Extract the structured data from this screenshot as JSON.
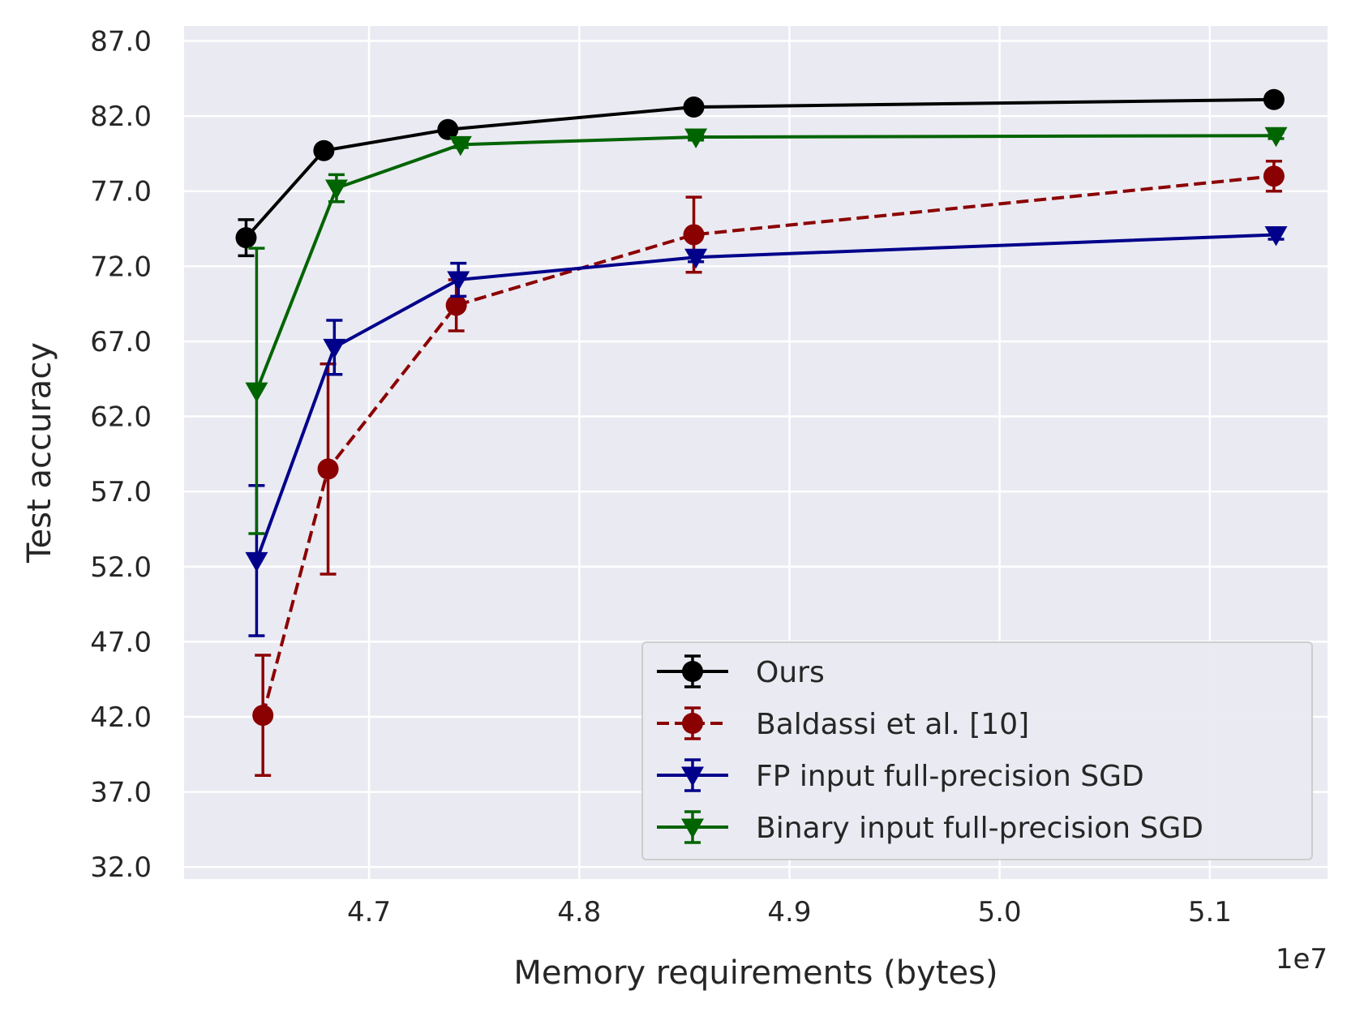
{
  "chart_data": {
    "type": "line",
    "xlabel": "Memory requirements (bytes)",
    "ylabel": "Test accuracy",
    "x_offset_label": "1e7",
    "xlim": [
      4.612,
      5.156
    ],
    "ylim": [
      31.2,
      88.0
    ],
    "xticks": [
      4.7,
      4.8,
      4.9,
      5.0,
      5.1
    ],
    "xtick_labels": [
      "4.7",
      "4.8",
      "4.9",
      "5.0",
      "5.1"
    ],
    "yticks": [
      32,
      37,
      42,
      47,
      52,
      57,
      62,
      67,
      72,
      77,
      82,
      87
    ],
    "ytick_labels": [
      "32.0",
      "37.0",
      "42.0",
      "47.0",
      "52.0",
      "57.0",
      "62.0",
      "67.0",
      "72.0",
      "77.0",
      "82.0",
      "87.0"
    ],
    "grid": true,
    "legend_position": "lower-right",
    "series": [
      {
        "name": "Ours",
        "color": "#000000",
        "marker": "circle",
        "dashed": false,
        "x": [
          4.6415,
          4.6785,
          4.7375,
          4.8545,
          5.1305
        ],
        "y": [
          73.9,
          79.7,
          81.1,
          82.6,
          83.1
        ],
        "err": [
          1.2,
          0.3,
          0.3,
          0.2,
          0.2
        ]
      },
      {
        "name": "Baldassi et al. [10]",
        "color": "#8b0000",
        "marker": "circle",
        "dashed": true,
        "x": [
          4.6495,
          4.6805,
          4.7415,
          4.8545,
          5.1305
        ],
        "y": [
          42.1,
          58.5,
          69.4,
          74.1,
          78.0
        ],
        "err": [
          4.0,
          7.0,
          1.7,
          2.5,
          1.0
        ]
      },
      {
        "name": "FP input full-precision SGD",
        "color": "#00008b",
        "marker": "triangle-down",
        "dashed": false,
        "x": [
          4.6465,
          4.6835,
          4.7425,
          4.8555,
          5.1315
        ],
        "y": [
          52.4,
          66.6,
          71.1,
          72.6,
          74.1
        ],
        "err": [
          5.0,
          1.8,
          1.1,
          0.3,
          0.3
        ]
      },
      {
        "name": "Binary input full-precision SGD",
        "color": "#006400",
        "marker": "triangle-down",
        "dashed": false,
        "x": [
          4.6465,
          4.6845,
          4.7435,
          4.8555,
          5.1315
        ],
        "y": [
          63.7,
          77.2,
          80.1,
          80.6,
          80.7
        ],
        "err": [
          9.5,
          0.9,
          0.2,
          0.2,
          0.2
        ]
      }
    ]
  }
}
